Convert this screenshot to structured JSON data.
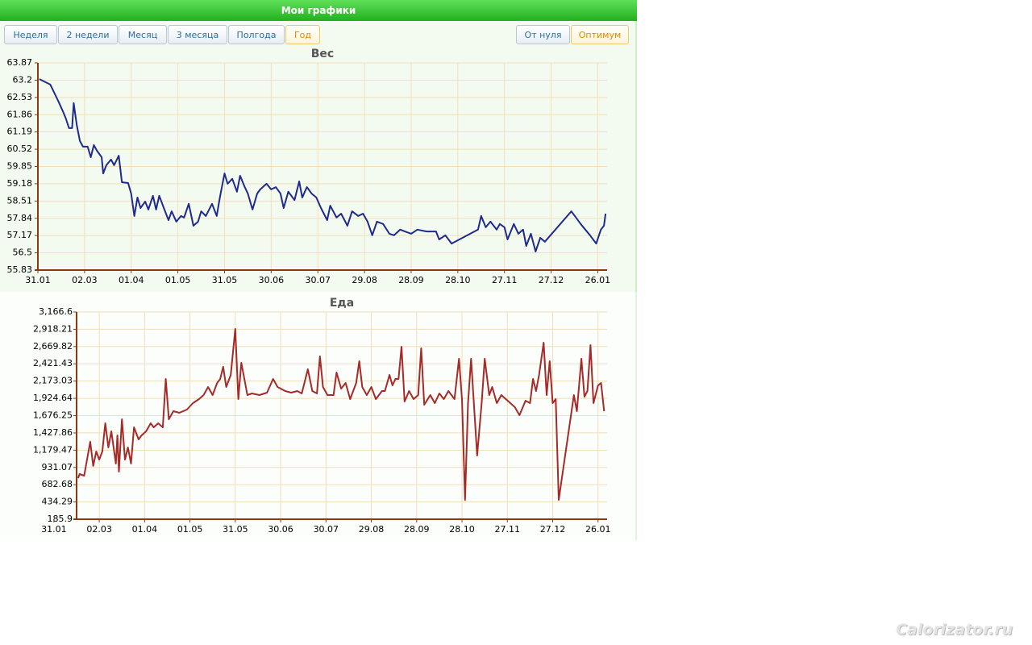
{
  "header": {
    "title": "Мои графики"
  },
  "range_buttons": [
    {
      "label": "Неделя",
      "active": false
    },
    {
      "label": "2 недели",
      "active": false
    },
    {
      "label": "Месяц",
      "active": false
    },
    {
      "label": "3 месяца",
      "active": false
    },
    {
      "label": "Полгода",
      "active": false
    },
    {
      "label": "Год",
      "active": true
    }
  ],
  "scale_buttons": [
    {
      "label": "От нуля",
      "active": false
    },
    {
      "label": "Оптимум",
      "active": true
    }
  ],
  "watermark": "Calorizator.ru",
  "chart_data": [
    {
      "type": "line",
      "title": "Вес",
      "color": "#1f2a8c",
      "grid": true,
      "xlim": [
        0,
        366
      ],
      "xticks": [
        {
          "value": 0,
          "label": "31.01"
        },
        {
          "value": 30,
          "label": "02.03"
        },
        {
          "value": 60,
          "label": "01.04"
        },
        {
          "value": 90,
          "label": "01.05"
        },
        {
          "value": 120,
          "label": "31.05"
        },
        {
          "value": 150,
          "label": "30.06"
        },
        {
          "value": 180,
          "label": "30.07"
        },
        {
          "value": 210,
          "label": "29.08"
        },
        {
          "value": 240,
          "label": "28.09"
        },
        {
          "value": 270,
          "label": "28.10"
        },
        {
          "value": 300,
          "label": "27.11"
        },
        {
          "value": 330,
          "label": "27.12"
        },
        {
          "value": 360,
          "label": "26.01"
        }
      ],
      "ylim": [
        55.83,
        63.87
      ],
      "yticks": [
        55.83,
        56.5,
        57.17,
        57.84,
        58.51,
        59.18,
        59.85,
        60.52,
        61.19,
        61.86,
        62.53,
        63.2,
        63.87
      ],
      "x": [
        1,
        8,
        13,
        16,
        18,
        20,
        22,
        23,
        25,
        27,
        29,
        32,
        34,
        36,
        38,
        41,
        42,
        44,
        47,
        49,
        52,
        54,
        58,
        60,
        62,
        64,
        66,
        69,
        71,
        74,
        76,
        78,
        81,
        84,
        86,
        89,
        92,
        94,
        97,
        100,
        103,
        105,
        108,
        112,
        115,
        117,
        120,
        122,
        125,
        128,
        130,
        133,
        135,
        138,
        141,
        143,
        147,
        150,
        153,
        156,
        158,
        161,
        165,
        168,
        170,
        173,
        176,
        179,
        182,
        186,
        188,
        192,
        195,
        199,
        202,
        206,
        209,
        212,
        215,
        218,
        222,
        226,
        229,
        233,
        236,
        240,
        244,
        250,
        256,
        258,
        262,
        266,
        283,
        285,
        288,
        291,
        295,
        297,
        300,
        302,
        306,
        309,
        312,
        314,
        317,
        320,
        323,
        326,
        343,
        346,
        349,
        352,
        355,
        359,
        362,
        364,
        365
      ],
      "values": [
        63.24,
        63.03,
        62.4,
        62.0,
        61.71,
        61.34,
        61.34,
        62.31,
        61.46,
        60.84,
        60.62,
        60.62,
        60.21,
        60.68,
        60.46,
        60.21,
        59.58,
        59.9,
        60.12,
        59.9,
        60.27,
        59.24,
        59.21,
        58.8,
        57.93,
        58.65,
        58.24,
        58.49,
        58.18,
        58.71,
        58.18,
        58.71,
        58.24,
        57.77,
        58.11,
        57.71,
        57.93,
        57.87,
        58.4,
        57.55,
        57.71,
        58.11,
        57.93,
        58.4,
        57.93,
        58.65,
        59.58,
        59.18,
        59.37,
        58.87,
        59.49,
        59.05,
        58.8,
        58.18,
        58.8,
        58.96,
        59.18,
        58.96,
        59.05,
        58.8,
        58.24,
        58.87,
        58.55,
        59.27,
        58.65,
        59.05,
        58.8,
        58.65,
        58.24,
        57.77,
        58.33,
        57.87,
        58.02,
        57.55,
        58.11,
        57.93,
        58.02,
        57.71,
        57.18,
        57.71,
        57.62,
        57.24,
        57.18,
        57.4,
        57.33,
        57.24,
        57.4,
        57.33,
        57.33,
        57.02,
        57.18,
        56.86,
        57.4,
        57.93,
        57.49,
        57.71,
        57.4,
        57.62,
        57.49,
        57.02,
        57.62,
        57.24,
        57.4,
        56.77,
        57.24,
        56.55,
        57.08,
        56.93,
        58.11,
        57.87,
        57.62,
        57.4,
        57.18,
        56.86,
        57.4,
        57.55,
        58.02
      ]
    },
    {
      "type": "line",
      "title": "Еда",
      "color": "#a52a2a",
      "grid": true,
      "xlim": [
        15,
        366
      ],
      "xticks": [
        {
          "value": 0,
          "label": "31.01"
        },
        {
          "value": 30,
          "label": "02.03"
        },
        {
          "value": 60,
          "label": "01.04"
        },
        {
          "value": 90,
          "label": "01.05"
        },
        {
          "value": 120,
          "label": "31.05"
        },
        {
          "value": 150,
          "label": "30.06"
        },
        {
          "value": 180,
          "label": "30.07"
        },
        {
          "value": 210,
          "label": "29.08"
        },
        {
          "value": 240,
          "label": "28.09"
        },
        {
          "value": 270,
          "label": "28.10"
        },
        {
          "value": 300,
          "label": "27.11"
        },
        {
          "value": 330,
          "label": "27.12"
        },
        {
          "value": 360,
          "label": "26.01"
        }
      ],
      "ylim": [
        185.9,
        3166.6
      ],
      "yticks": [
        185.9,
        434.29,
        682.68,
        931.07,
        {
          "value": 1179.47,
          "label": "1,179.47"
        },
        {
          "value": 1427.86,
          "label": "1,427.86"
        },
        {
          "value": 1676.25,
          "label": "1,676.25"
        },
        {
          "value": 1924.64,
          "label": "1,924.64"
        },
        {
          "value": 2173.03,
          "label": "2,173.03"
        },
        {
          "value": 2421.43,
          "label": "2,421.43"
        },
        {
          "value": 2669.82,
          "label": "2,669.82"
        },
        {
          "value": 2918.21,
          "label": "2,918.21"
        },
        {
          "value": 3166.6,
          "label": "3,166.6"
        }
      ],
      "x": [
        16,
        17,
        20,
        24,
        26,
        28,
        30,
        32,
        34,
        36,
        38,
        41,
        42,
        43,
        45,
        47,
        49,
        51,
        53,
        56,
        58,
        61,
        64,
        66,
        69,
        72,
        74,
        76,
        79,
        83,
        88,
        92,
        96,
        99,
        102,
        105,
        108,
        110,
        112,
        114,
        117,
        120,
        122,
        124,
        126,
        128,
        131,
        136,
        141,
        145,
        148,
        153,
        157,
        161,
        164,
        168,
        171,
        174,
        176,
        178,
        181,
        185,
        187,
        190,
        193,
        196,
        200,
        202,
        204,
        207,
        210,
        213,
        217,
        219,
        222,
        224,
        226,
        228,
        230,
        232,
        235,
        238,
        241,
        243,
        245,
        249,
        252,
        255,
        258,
        261,
        265,
        268,
        270,
        272,
        274,
        276,
        280,
        283,
        285,
        288,
        290,
        293,
        296,
        299,
        302,
        305,
        308,
        312,
        315,
        317,
        319,
        321,
        324,
        326,
        328,
        330,
        332,
        334,
        344,
        346,
        349,
        351,
        353,
        355,
        357,
        360,
        362,
        364
      ],
      "values": [
        777,
        835,
        812,
        1300,
        952,
        1160,
        1044,
        1160,
        1566,
        1218,
        1450,
        986,
        1392,
        870,
        1624,
        1044,
        1218,
        986,
        1508,
        1334,
        1392,
        1450,
        1566,
        1508,
        1566,
        1508,
        2204,
        1624,
        1740,
        1717,
        1763,
        1856,
        1914,
        1972,
        2088,
        1972,
        2146,
        2204,
        2378,
        2088,
        2262,
        2923,
        1914,
        2436,
        2204,
        1972,
        1995,
        1972,
        2007,
        2204,
        2088,
        2030,
        2007,
        2030,
        1995,
        2343,
        2030,
        1995,
        2529,
        2088,
        1972,
        1972,
        2297,
        2065,
        2146,
        1914,
        2146,
        2459,
        2088,
        1972,
        2088,
        1914,
        2030,
        2030,
        2262,
        2111,
        2204,
        2204,
        2668,
        1879,
        2030,
        1914,
        1972,
        2645,
        1833,
        1972,
        1856,
        1995,
        1914,
        2030,
        1914,
        2494,
        1914,
        464,
        1856,
        2494,
        1102,
        1856,
        2494,
        1972,
        2088,
        1856,
        1972,
        1914,
        1856,
        1798,
        1682,
        1891,
        1856,
        2204,
        2030,
        2262,
        2726,
        1972,
        2459,
        1856,
        1914,
        464,
        1972,
        1740,
        2494,
        1949,
        2030,
        2691,
        1856,
        2111,
        2146,
        1740
      ]
    }
  ]
}
